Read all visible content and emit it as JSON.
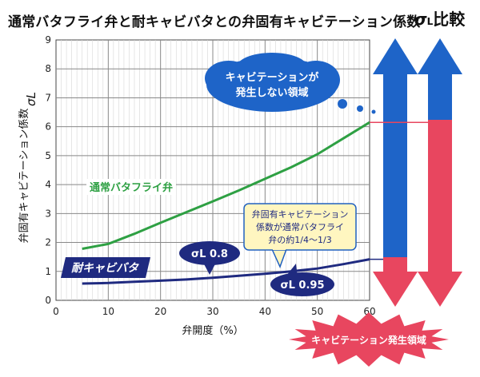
{
  "title": "通常バタフライ弁と耐キャビバタとの弁固有キャビテーション係数",
  "sigma_compare": {
    "symbol": "σ",
    "sub": "L",
    "text": "比較"
  },
  "labels": {
    "normal_valve": "通常バタフライ弁",
    "anti_cav_valve": "耐キャビバタ",
    "sigma_normal": "σL 0.8",
    "sigma_anti": "σL 0.95",
    "no_cav_bubble_line1": "キャビテーションが",
    "no_cav_bubble_line2": "発生しない領域",
    "note_line1": "弁固有キャビテーション",
    "note_line2": "係数が通常バタフライ",
    "note_line3": "弁の約1/4〜1/3",
    "cav_zone": "キャビテーション発生領域"
  },
  "colors": {
    "normal_series": "#2ea043",
    "anti_series": "#1f2a80",
    "arrow_blue": "#1e64c8",
    "arrow_red": "#e8465f",
    "note_bg": "#fff6c0",
    "note_border": "#2060c0",
    "burst": "#e8465f",
    "cloud": "#1e64c8"
  },
  "chart_data": {
    "type": "line",
    "xlabel": "弁開度（%）",
    "ylabel": "弁固有キャビテーション係数",
    "ylabel_symbol": "σL",
    "xlim": [
      0,
      60
    ],
    "ylim": [
      0,
      9
    ],
    "xticks": [
      "0",
      "10",
      "20",
      "30",
      "40",
      "50",
      "60"
    ],
    "yticks": [
      "0",
      "1",
      "2",
      "3",
      "4",
      "5",
      "6",
      "7",
      "8",
      "9"
    ],
    "grid": true,
    "series": [
      {
        "name": "通常バタフライ弁",
        "x": [
          5,
          10,
          15,
          20,
          25,
          30,
          35,
          40,
          45,
          50,
          55,
          60
        ],
        "y": [
          1.78,
          1.95,
          2.3,
          2.68,
          3.05,
          3.42,
          3.8,
          4.2,
          4.6,
          5.05,
          5.6,
          6.15
        ]
      },
      {
        "name": "耐キャビバタ",
        "x": [
          5,
          10,
          15,
          20,
          25,
          30,
          35,
          40,
          45,
          50,
          55,
          60
        ],
        "y": [
          0.58,
          0.6,
          0.64,
          0.68,
          0.72,
          0.78,
          0.85,
          0.92,
          1.0,
          1.1,
          1.25,
          1.42
        ]
      }
    ]
  }
}
